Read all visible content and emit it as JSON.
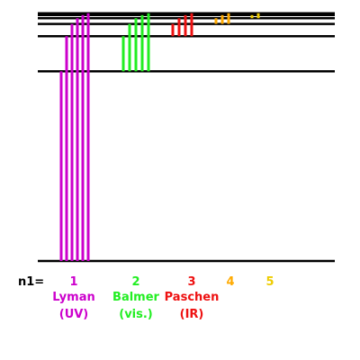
{
  "diagram": {
    "type": "energy-level-diagram",
    "n1_label": "n1=",
    "energy_levels_n": [
      1,
      2,
      3,
      4,
      5,
      6,
      7
    ],
    "series": [
      {
        "n1": "1",
        "name": "Lyman",
        "region": "(UV)",
        "color": "#cc00cc",
        "line_count": 6
      },
      {
        "n1": "2",
        "name": "Balmer",
        "region": "(vis.)",
        "color": "#22ee22",
        "line_count": 5
      },
      {
        "n1": "3",
        "name": "Paschen",
        "region": "(IR)",
        "color": "#ee1111",
        "line_count": 4
      },
      {
        "n1": "4",
        "name": "",
        "region": "",
        "color": "#ffaa00",
        "line_count": 3
      },
      {
        "n1": "5",
        "name": "",
        "region": "",
        "color": "#eecc00",
        "line_count": 2
      }
    ],
    "level_color": "#000000"
  }
}
